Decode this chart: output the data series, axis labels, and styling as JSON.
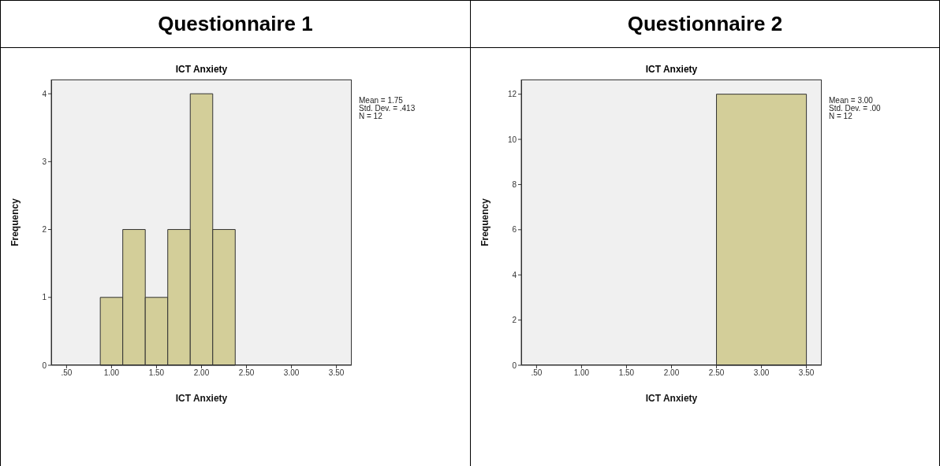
{
  "chart_data": [
    {
      "type": "histogram",
      "title": "Questionnaire 1",
      "subtitle": "ICT Anxiety",
      "xlabel": "ICT Anxiety",
      "ylabel": "Frequency",
      "bins": [
        0.875,
        1.125,
        1.375,
        1.625,
        1.875,
        2.125,
        2.375
      ],
      "values": [
        1,
        2,
        1,
        2,
        4,
        2
      ],
      "color": "#d3ce99",
      "xlim": [
        0.33,
        3.67
      ],
      "xticks": [
        {
          "value": 0.5,
          "label": ".50"
        },
        {
          "value": 1,
          "label": "1.00"
        },
        {
          "value": 1.5,
          "label": "1.50"
        },
        {
          "value": 2,
          "label": "2.00"
        },
        {
          "value": 2.5,
          "label": "2.50"
        },
        {
          "value": 3,
          "label": "3.00"
        },
        {
          "value": 3.5,
          "label": "3.50"
        }
      ],
      "ylim": [
        0,
        4.21
      ],
      "yticks": [
        0,
        1,
        2,
        3,
        4
      ],
      "annotations": [
        "Mean = 1.75",
        "Std. Dev. = .413",
        "N = 12"
      ]
    },
    {
      "type": "histogram",
      "title": "Questionnaire 2",
      "subtitle": "ICT Anxiety",
      "xlabel": "ICT Anxiety",
      "ylabel": "Frequency",
      "bins": [
        2.5,
        3.5
      ],
      "values": [
        12
      ],
      "color": "#d3ce99",
      "xlim": [
        0.33,
        3.67
      ],
      "xticks": [
        {
          "value": 0.5,
          "label": ".50"
        },
        {
          "value": 1,
          "label": "1.00"
        },
        {
          "value": 1.5,
          "label": "1.50"
        },
        {
          "value": 2,
          "label": "2.00"
        },
        {
          "value": 2.5,
          "label": "2.50"
        },
        {
          "value": 3,
          "label": "3.00"
        },
        {
          "value": 3.5,
          "label": "3.50"
        }
      ],
      "ylim": [
        0,
        12.65
      ],
      "yticks": [
        0,
        2,
        4,
        6,
        8,
        10,
        12
      ],
      "annotations": [
        "Mean = 3.00",
        "Std. Dev. = .00",
        "N = 12"
      ]
    }
  ]
}
